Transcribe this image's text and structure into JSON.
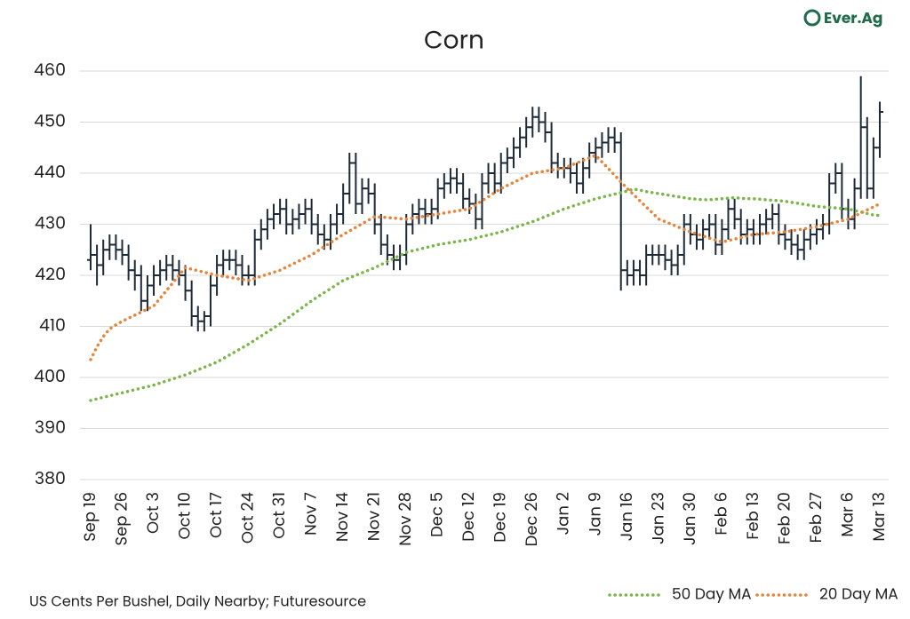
{
  "chart_data": {
    "type": "ohlc",
    "title": "Corn",
    "logo": "Ever.Ag",
    "source": "US Cents Per Bushel, Daily Nearby; Futuresource",
    "bar_color": "#1c2a39",
    "grid": true,
    "ylim": [
      380,
      460
    ],
    "yticks": [
      380,
      390,
      400,
      410,
      420,
      430,
      440,
      450,
      460
    ],
    "categories": [
      "Sep 19",
      null,
      null,
      null,
      null,
      "Sep 26",
      null,
      null,
      null,
      null,
      "Oct 3",
      null,
      null,
      null,
      null,
      "Oct 10",
      null,
      null,
      null,
      null,
      "Oct 17",
      null,
      null,
      null,
      null,
      "Oct 24",
      null,
      null,
      null,
      null,
      "Oct 31",
      null,
      null,
      null,
      null,
      "Nov 7",
      null,
      null,
      null,
      null,
      "Nov 14",
      null,
      null,
      null,
      null,
      "Nov 21",
      null,
      null,
      null,
      null,
      "Nov 28",
      null,
      null,
      null,
      null,
      "Dec 5",
      null,
      null,
      null,
      null,
      "Dec 12",
      null,
      null,
      null,
      null,
      "Dec 19",
      null,
      null,
      null,
      null,
      "Dec 26",
      null,
      null,
      null,
      null,
      "Jan 2",
      null,
      null,
      null,
      null,
      "Jan 9",
      null,
      null,
      null,
      null,
      "Jan 16",
      null,
      null,
      null,
      null,
      "Jan 23",
      null,
      null,
      null,
      null,
      "Jan 30",
      null,
      null,
      null,
      null,
      "Feb 6",
      null,
      null,
      null,
      null,
      "Feb 13",
      null,
      null,
      null,
      null,
      "Feb 20",
      null,
      null,
      null,
      null,
      "Feb 27",
      null,
      null,
      null,
      null,
      "Mar 6",
      null,
      null,
      null,
      null,
      "Mar 13"
    ],
    "open": [
      423,
      424,
      422,
      425,
      426,
      425,
      424,
      421,
      420,
      415,
      418,
      420,
      421,
      422,
      421,
      420,
      417,
      412,
      411,
      412,
      418,
      422,
      423,
      423,
      422,
      420,
      420,
      427,
      429,
      431,
      432,
      433,
      430,
      431,
      432,
      433,
      430,
      428,
      427,
      430,
      432,
      436,
      442,
      434,
      437,
      436,
      430,
      426,
      424,
      423,
      424,
      430,
      432,
      433,
      432,
      433,
      437,
      438,
      439,
      438,
      435,
      434,
      431,
      438,
      440,
      438,
      442,
      443,
      445,
      447,
      449,
      451,
      450,
      448,
      442,
      441,
      441,
      440,
      438,
      441,
      444,
      445,
      446,
      447,
      446,
      421,
      420,
      421,
      420,
      424,
      424,
      424,
      423,
      422,
      424,
      430,
      428,
      427,
      429,
      430,
      426,
      429,
      433,
      431,
      428,
      429,
      428,
      430,
      431,
      432,
      428,
      427,
      426,
      425,
      427,
      428,
      429,
      430,
      438,
      440,
      433,
      431,
      437,
      449,
      437,
      445
    ],
    "high": [
      430,
      426,
      427,
      428,
      428,
      427,
      426,
      423,
      422,
      420,
      422,
      423,
      424,
      424,
      423,
      422,
      419,
      414,
      413,
      420,
      424,
      425,
      425,
      425,
      424,
      422,
      429,
      431,
      433,
      434,
      435,
      435,
      433,
      434,
      435,
      435,
      432,
      430,
      432,
      434,
      438,
      444,
      444,
      439,
      439,
      438,
      432,
      428,
      426,
      426,
      432,
      434,
      435,
      435,
      435,
      439,
      440,
      441,
      441,
      440,
      437,
      436,
      440,
      442,
      442,
      444,
      445,
      447,
      449,
      451,
      453,
      453,
      452,
      450,
      444,
      443,
      443,
      442,
      443,
      446,
      447,
      448,
      449,
      449,
      448,
      423,
      423,
      423,
      426,
      426,
      426,
      426,
      425,
      426,
      432,
      432,
      430,
      431,
      432,
      432,
      431,
      435,
      435,
      433,
      431,
      431,
      432,
      433,
      434,
      434,
      430,
      429,
      428,
      429,
      430,
      431,
      432,
      440,
      442,
      442,
      435,
      439,
      459,
      451,
      447,
      454
    ],
    "low": [
      421,
      418,
      420,
      423,
      423,
      422,
      419,
      417,
      413,
      413,
      416,
      418,
      419,
      419,
      418,
      415,
      410,
      409,
      409,
      410,
      416,
      420,
      421,
      420,
      418,
      418,
      418,
      425,
      427,
      429,
      430,
      428,
      428,
      429,
      430,
      428,
      426,
      425,
      425,
      428,
      430,
      434,
      432,
      432,
      434,
      428,
      424,
      422,
      421,
      421,
      422,
      428,
      430,
      430,
      430,
      431,
      435,
      436,
      436,
      433,
      432,
      429,
      429,
      436,
      436,
      436,
      440,
      441,
      443,
      445,
      447,
      448,
      446,
      440,
      439,
      439,
      438,
      436,
      436,
      439,
      442,
      443,
      444,
      444,
      417,
      418,
      418,
      418,
      418,
      422,
      422,
      421,
      420,
      420,
      422,
      426,
      425,
      425,
      427,
      424,
      424,
      427,
      429,
      426,
      426,
      426,
      426,
      428,
      429,
      426,
      425,
      424,
      423,
      423,
      425,
      426,
      427,
      428,
      436,
      431,
      429,
      429,
      435,
      435,
      435,
      443
    ],
    "close": [
      424,
      422,
      425,
      426,
      425,
      424,
      421,
      420,
      415,
      418,
      420,
      421,
      422,
      421,
      420,
      417,
      412,
      411,
      412,
      418,
      422,
      423,
      423,
      422,
      420,
      420,
      427,
      429,
      431,
      432,
      433,
      430,
      431,
      432,
      433,
      430,
      428,
      427,
      430,
      432,
      436,
      442,
      434,
      437,
      436,
      430,
      426,
      424,
      423,
      424,
      430,
      432,
      433,
      432,
      433,
      437,
      438,
      439,
      438,
      435,
      434,
      431,
      438,
      440,
      438,
      442,
      443,
      445,
      447,
      449,
      451,
      450,
      448,
      442,
      441,
      441,
      440,
      438,
      441,
      444,
      445,
      446,
      447,
      446,
      421,
      420,
      421,
      420,
      424,
      424,
      424,
      423,
      422,
      424,
      430,
      428,
      427,
      429,
      430,
      426,
      429,
      433,
      431,
      428,
      429,
      428,
      430,
      431,
      432,
      428,
      427,
      426,
      425,
      427,
      428,
      429,
      430,
      438,
      440,
      433,
      431,
      437,
      449,
      437,
      445,
      452
    ],
    "series": [
      {
        "name": "50 Day MA",
        "color": "#7ab648",
        "values": [
          395.5,
          395.8,
          396.1,
          396.4,
          396.7,
          397,
          397.3,
          397.6,
          397.9,
          398.2,
          398.5,
          398.9,
          399.3,
          399.7,
          400.1,
          400.5,
          401,
          401.5,
          402,
          402.5,
          403,
          403.7,
          404.4,
          405.1,
          405.8,
          406.5,
          407.3,
          408.1,
          408.9,
          409.7,
          410.5,
          411.4,
          412.3,
          413.2,
          414.1,
          415,
          415.8,
          416.6,
          417.4,
          418.2,
          419,
          419.5,
          420,
          420.5,
          421,
          421.5,
          422.1,
          422.7,
          423.3,
          423.9,
          424.5,
          424.8,
          425.1,
          425.4,
          425.7,
          426,
          426.2,
          426.4,
          426.6,
          426.8,
          427,
          427.3,
          427.6,
          427.9,
          428.2,
          428.5,
          428.9,
          429.3,
          429.7,
          430.1,
          430.5,
          431,
          431.5,
          432,
          432.5,
          433,
          433.4,
          433.8,
          434.2,
          434.6,
          435,
          435.3,
          435.6,
          435.9,
          436.2,
          436.5,
          436.9,
          436.7,
          436.4,
          436.2,
          436,
          435.8,
          435.6,
          435.4,
          435.2,
          435,
          434.9,
          434.8,
          434.8,
          434.9,
          435,
          435.1,
          435.2,
          435.1,
          435,
          435,
          434.9,
          434.8,
          434.7,
          434.6,
          434.5,
          434.3,
          434.1,
          433.9,
          433.7,
          433.5,
          433.4,
          433.3,
          433.2,
          433.1,
          433,
          432.7,
          432.4,
          432.1,
          431.8,
          431.7
        ]
      },
      {
        "name": "20 Day MA",
        "color": "#e8833a",
        "values": [
          403.5,
          406,
          408,
          409.5,
          410.3,
          411,
          411.6,
          412.2,
          412.8,
          413.4,
          414,
          415.5,
          417,
          418.5,
          420,
          421.5,
          421.2,
          420.9,
          420.6,
          420.3,
          420,
          419.8,
          419.6,
          419.4,
          419.2,
          419,
          419.4,
          419.8,
          420.2,
          420.6,
          421,
          421.6,
          422.2,
          422.8,
          423.4,
          424,
          424.8,
          425.6,
          426.4,
          427.2,
          428,
          428.7,
          429.4,
          430.1,
          430.8,
          431.5,
          431.4,
          431.3,
          431.2,
          431.1,
          431,
          431.2,
          431.4,
          431.6,
          431.8,
          432,
          432.2,
          432.4,
          432.6,
          432.8,
          433,
          433.8,
          434.6,
          435.4,
          436.2,
          437,
          437.6,
          438.2,
          438.8,
          439.4,
          440,
          440.2,
          440.4,
          440.6,
          440.8,
          441,
          441.5,
          442,
          442.5,
          443,
          443.5,
          442.2,
          440.9,
          439.6,
          438.3,
          437,
          435.8,
          434.6,
          433.4,
          432.2,
          431,
          430.5,
          430,
          429.5,
          429,
          428.5,
          428.1,
          427.7,
          427.3,
          426.9,
          426.5,
          426.8,
          427.1,
          427.4,
          427.7,
          428,
          428.1,
          428.2,
          428.3,
          428.4,
          428.5,
          428.7,
          428.9,
          429.1,
          429.3,
          429.5,
          429.8,
          430.1,
          430.4,
          430.7,
          431,
          431.6,
          432.2,
          432.8,
          433.4,
          434
        ]
      }
    ]
  }
}
